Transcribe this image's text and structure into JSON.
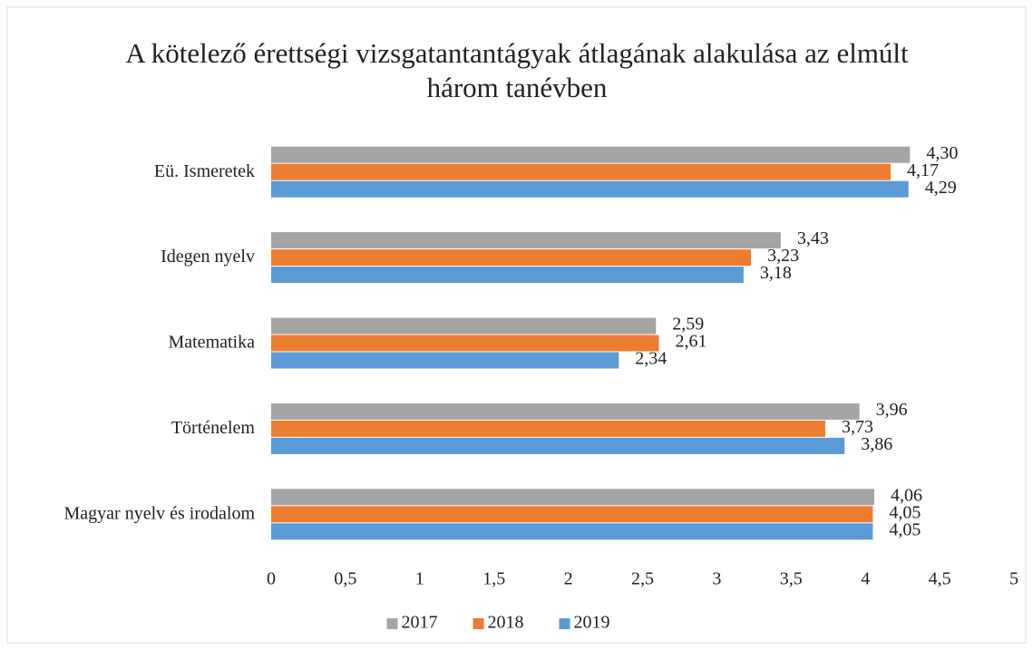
{
  "chart_data": {
    "type": "bar",
    "orientation": "horizontal",
    "title": "A kötelező érettségi vizsgatantantágyak átlagának alakulása az elmúlt három tanévben",
    "categories": [
      "Eü. Ismeretek",
      "Idegen nyelv",
      "Matematika",
      "Történelem",
      "Magyar nyelv és irodalom"
    ],
    "series": [
      {
        "name": "2017",
        "color": "#a5a5a5",
        "values": [
          4.3,
          3.43,
          2.59,
          3.96,
          4.06
        ],
        "value_labels": [
          "4,30",
          "3,43",
          "2,59",
          "3,96",
          "4,06"
        ]
      },
      {
        "name": "2018",
        "color": "#ed7d31",
        "values": [
          4.17,
          3.23,
          2.61,
          3.73,
          4.05
        ],
        "value_labels": [
          "4,17",
          "3,23",
          "2,61",
          "3,73",
          "4,05"
        ]
      },
      {
        "name": "2019",
        "color": "#5b9bd5",
        "values": [
          4.29,
          3.18,
          2.34,
          3.86,
          4.05
        ],
        "value_labels": [
          "4,29",
          "3,18",
          "2,34",
          "3,86",
          "4,05"
        ]
      }
    ],
    "xlim": [
      0,
      5
    ],
    "xticks": [
      0,
      {
        "value": 0.5,
        "label": "0,5"
      },
      1,
      {
        "value": 1.5,
        "label": "1,5"
      },
      2,
      {
        "value": 2.5,
        "label": "2,5"
      },
      3,
      {
        "value": 3.5,
        "label": "3,5"
      },
      4,
      {
        "value": 4.5,
        "label": "4,5"
      },
      5
    ],
    "grid": false,
    "legend": "bottom"
  }
}
